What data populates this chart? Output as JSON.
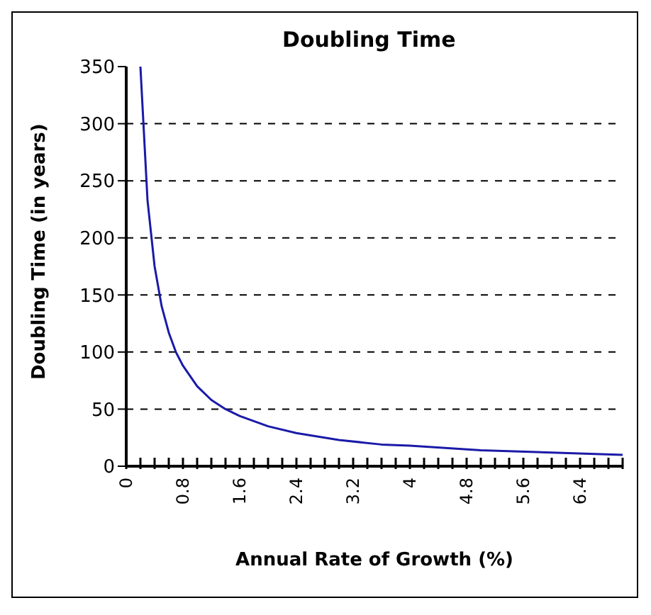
{
  "chart_data": {
    "type": "line",
    "title": "Doubling Time",
    "xlabel": "Annual Rate of Growth (%)",
    "ylabel": "Doubling Time (in years)",
    "x": [
      0.2,
      0.3,
      0.4,
      0.5,
      0.6,
      0.7,
      0.8,
      1,
      1.2,
      1.4,
      1.6,
      2,
      2.4,
      3,
      3.6,
      4,
      5,
      6,
      7
    ],
    "series": [
      {
        "color": "#1a1aa8",
        "values": [
          350,
          233,
          175,
          140,
          117,
          100,
          88,
          70,
          58,
          50,
          44,
          35,
          29,
          23,
          19,
          18,
          14,
          12,
          10
        ]
      }
    ],
    "xlim": [
      0,
      7
    ],
    "ylim": [
      0,
      350
    ],
    "yticks": [
      0,
      50,
      100,
      150,
      200,
      250,
      300,
      350
    ],
    "xticks": [
      0,
      {
        "value": 0.2,
        "label": null
      },
      {
        "value": 0.4,
        "label": null
      },
      {
        "value": 0.6,
        "label": null
      },
      0.8,
      {
        "value": 1,
        "label": null
      },
      {
        "value": 1.2,
        "label": null
      },
      {
        "value": 1.4,
        "label": null
      },
      1.6,
      {
        "value": 1.8,
        "label": null
      },
      {
        "value": 2,
        "label": null
      },
      {
        "value": 2.2,
        "label": null
      },
      2.4,
      {
        "value": 2.6,
        "label": null
      },
      {
        "value": 2.8,
        "label": null
      },
      {
        "value": 3,
        "label": null
      },
      3.2,
      {
        "value": 3.4,
        "label": null
      },
      {
        "value": 3.6,
        "label": null
      },
      {
        "value": 3.8,
        "label": null
      },
      4,
      {
        "value": 4.2,
        "label": null
      },
      {
        "value": 4.4,
        "label": null
      },
      {
        "value": 4.6,
        "label": null
      },
      4.8,
      {
        "value": 5,
        "label": null
      },
      {
        "value": 5.2,
        "label": null
      },
      {
        "value": 5.4,
        "label": null
      },
      5.6,
      {
        "value": 5.8,
        "label": null
      },
      {
        "value": 6,
        "label": null
      },
      {
        "value": 6.2,
        "label": null
      },
      6.4,
      {
        "value": 6.6,
        "label": null
      },
      {
        "value": 6.8,
        "label": null
      },
      {
        "value": 7,
        "label": null
      }
    ],
    "grid": "y",
    "marker": "none",
    "line_style": "solid"
  }
}
